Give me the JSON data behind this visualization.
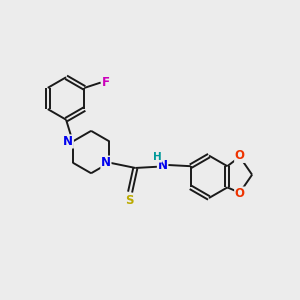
{
  "background_color": "#ececec",
  "bond_color": "#1a1a1a",
  "atom_colors": {
    "N": "#0000ee",
    "O": "#ee3300",
    "S": "#bbaa00",
    "F": "#cc00bb",
    "H": "#009999",
    "C": "#1a1a1a"
  },
  "lw": 1.4,
  "fs": 8.5
}
